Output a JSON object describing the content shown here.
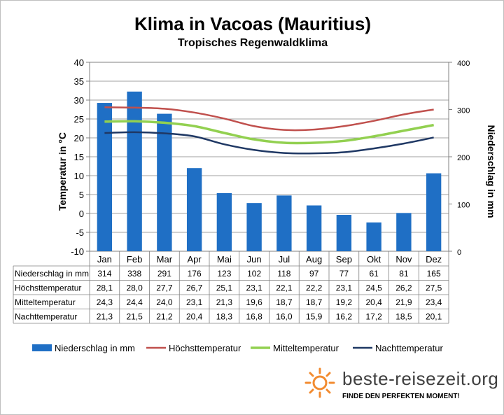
{
  "chart_data": {
    "type": "bar+line",
    "title": "Klima in Vacoas (Mauritius)",
    "subtitle": "Tropisches Regenwaldklima",
    "categories": [
      "Jan",
      "Feb",
      "Mar",
      "Apr",
      "Mai",
      "Jun",
      "Jul",
      "Aug",
      "Sep",
      "Okt",
      "Nov",
      "Dez"
    ],
    "ylabel_left": "Temperatur in °C",
    "ylabel_right": "Niederschlag in mm",
    "ylim_left": [
      -10,
      40
    ],
    "yticks_left": [
      "40",
      "35",
      "30",
      "25",
      "20",
      "15",
      "10",
      "5",
      "0",
      "-5",
      "-10"
    ],
    "ylim_right": [
      0,
      400
    ],
    "yticks_right": [
      "400",
      "300",
      "200",
      "100",
      "0"
    ],
    "grid": true,
    "legend_position": "bottom",
    "series": [
      {
        "name": "Niederschlag in mm",
        "type": "bar",
        "axis": "right",
        "color": "#1f6fc5",
        "values": [
          314,
          338,
          291,
          176,
          123,
          102,
          118,
          97,
          77,
          61,
          81,
          165
        ]
      },
      {
        "name": "Höchsttemperatur",
        "type": "line",
        "axis": "left",
        "color": "#c0504d",
        "values": [
          28.1,
          28.0,
          27.7,
          26.7,
          25.1,
          23.1,
          22.1,
          22.2,
          23.1,
          24.5,
          26.2,
          27.5
        ]
      },
      {
        "name": "Mitteltemperatur",
        "type": "line",
        "axis": "left",
        "color": "#92d050",
        "values": [
          24.3,
          24.4,
          24.0,
          23.1,
          21.3,
          19.6,
          18.7,
          18.7,
          19.2,
          20.4,
          21.9,
          23.4
        ]
      },
      {
        "name": "Nachttemperatur",
        "type": "line",
        "axis": "left",
        "color": "#1f3864",
        "values": [
          21.3,
          21.5,
          21.2,
          20.4,
          18.3,
          16.8,
          16.0,
          15.9,
          16.2,
          17.2,
          18.5,
          20.1
        ]
      }
    ],
    "table": {
      "rows": [
        {
          "label": "Niederschlag in mm",
          "cells": [
            "314",
            "338",
            "291",
            "176",
            "123",
            "102",
            "118",
            "97",
            "77",
            "61",
            "81",
            "165"
          ]
        },
        {
          "label": "Höchsttemperatur",
          "cells": [
            "28,1",
            "28,0",
            "27,7",
            "26,7",
            "25,1",
            "23,1",
            "22,1",
            "22,2",
            "23,1",
            "24,5",
            "26,2",
            "27,5"
          ]
        },
        {
          "label": "Mitteltemperatur",
          "cells": [
            "24,3",
            "24,4",
            "24,0",
            "23,1",
            "21,3",
            "19,6",
            "18,7",
            "18,7",
            "19,2",
            "20,4",
            "21,9",
            "23,4"
          ]
        },
        {
          "label": "Nachttemperatur",
          "cells": [
            "21,3",
            "21,5",
            "21,2",
            "20,4",
            "18,3",
            "16,8",
            "16,0",
            "15,9",
            "16,2",
            "17,2",
            "18,5",
            "20,1"
          ]
        }
      ]
    }
  },
  "logo": {
    "text": "beste-reisezeit.org",
    "slogan": "FINDE DEN PERFEKTEN MOMENT!",
    "icon": "sun-icon",
    "colors": {
      "sun": "#f28b30",
      "text": "#404040"
    }
  }
}
